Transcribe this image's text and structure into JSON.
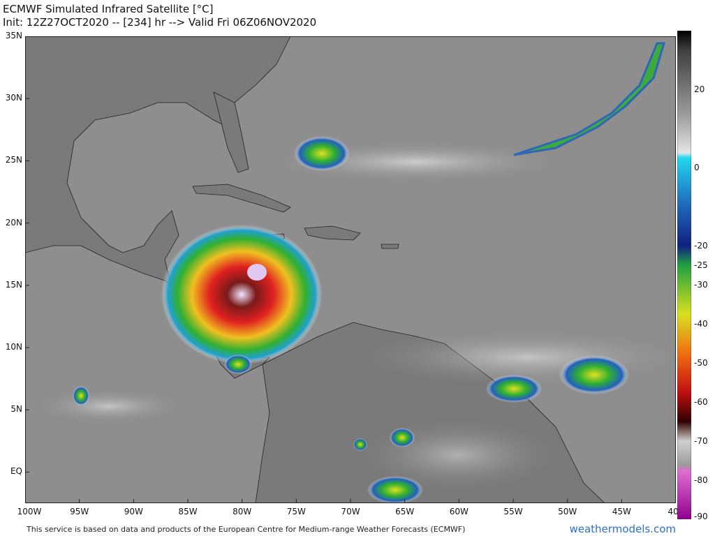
{
  "title": {
    "line1": "ECMWF Simulated Infrared Satellite [°C]",
    "line2": "Init: 12Z27OCT2020 -- [234] hr --> Valid Fri 06Z06NOV2020"
  },
  "map": {
    "lon_range": [
      -100,
      -40
    ],
    "lat_range": [
      -2.5,
      35
    ],
    "lat_ticks": [
      {
        "label": "35N",
        "lat": 35
      },
      {
        "label": "30N",
        "lat": 30
      },
      {
        "label": "25N",
        "lat": 25
      },
      {
        "label": "20N",
        "lat": 20
      },
      {
        "label": "15N",
        "lat": 15
      },
      {
        "label": "10N",
        "lat": 10
      },
      {
        "label": "5N",
        "lat": 5
      },
      {
        "label": "EQ",
        "lat": 0
      }
    ],
    "lon_ticks": [
      {
        "label": "100W",
        "lon": -100
      },
      {
        "label": "95W",
        "lon": -95
      },
      {
        "label": "90W",
        "lon": -90
      },
      {
        "label": "85W",
        "lon": -85
      },
      {
        "label": "80W",
        "lon": -80
      },
      {
        "label": "75W",
        "lon": -75
      },
      {
        "label": "70W",
        "lon": -70
      },
      {
        "label": "65W",
        "lon": -65
      },
      {
        "label": "60W",
        "lon": -60
      },
      {
        "label": "55W",
        "lon": -55
      },
      {
        "label": "50W",
        "lon": -50
      },
      {
        "label": "45W",
        "lon": -45
      },
      {
        "label": "40",
        "lon": -40
      }
    ]
  },
  "colorbar": {
    "min": -90,
    "max": 35,
    "ticks": [
      {
        "label": "20",
        "value": 20
      },
      {
        "label": "0",
        "value": 0
      },
      {
        "label": "-20",
        "value": -20
      },
      {
        "label": "-25",
        "value": -25
      },
      {
        "label": "-30",
        "value": -30
      },
      {
        "label": "-40",
        "value": -40
      },
      {
        "label": "-50",
        "value": -50
      },
      {
        "label": "-60",
        "value": -60
      },
      {
        "label": "-70",
        "value": -70
      },
      {
        "label": "-80",
        "value": -80
      },
      {
        "label": "-90",
        "value": -90
      }
    ]
  },
  "footer": {
    "credit": "This service is based on data and products of the European Centre for Medium-range Weather Forecasts (ECMWF)",
    "brand": "weathermodels.com"
  }
}
